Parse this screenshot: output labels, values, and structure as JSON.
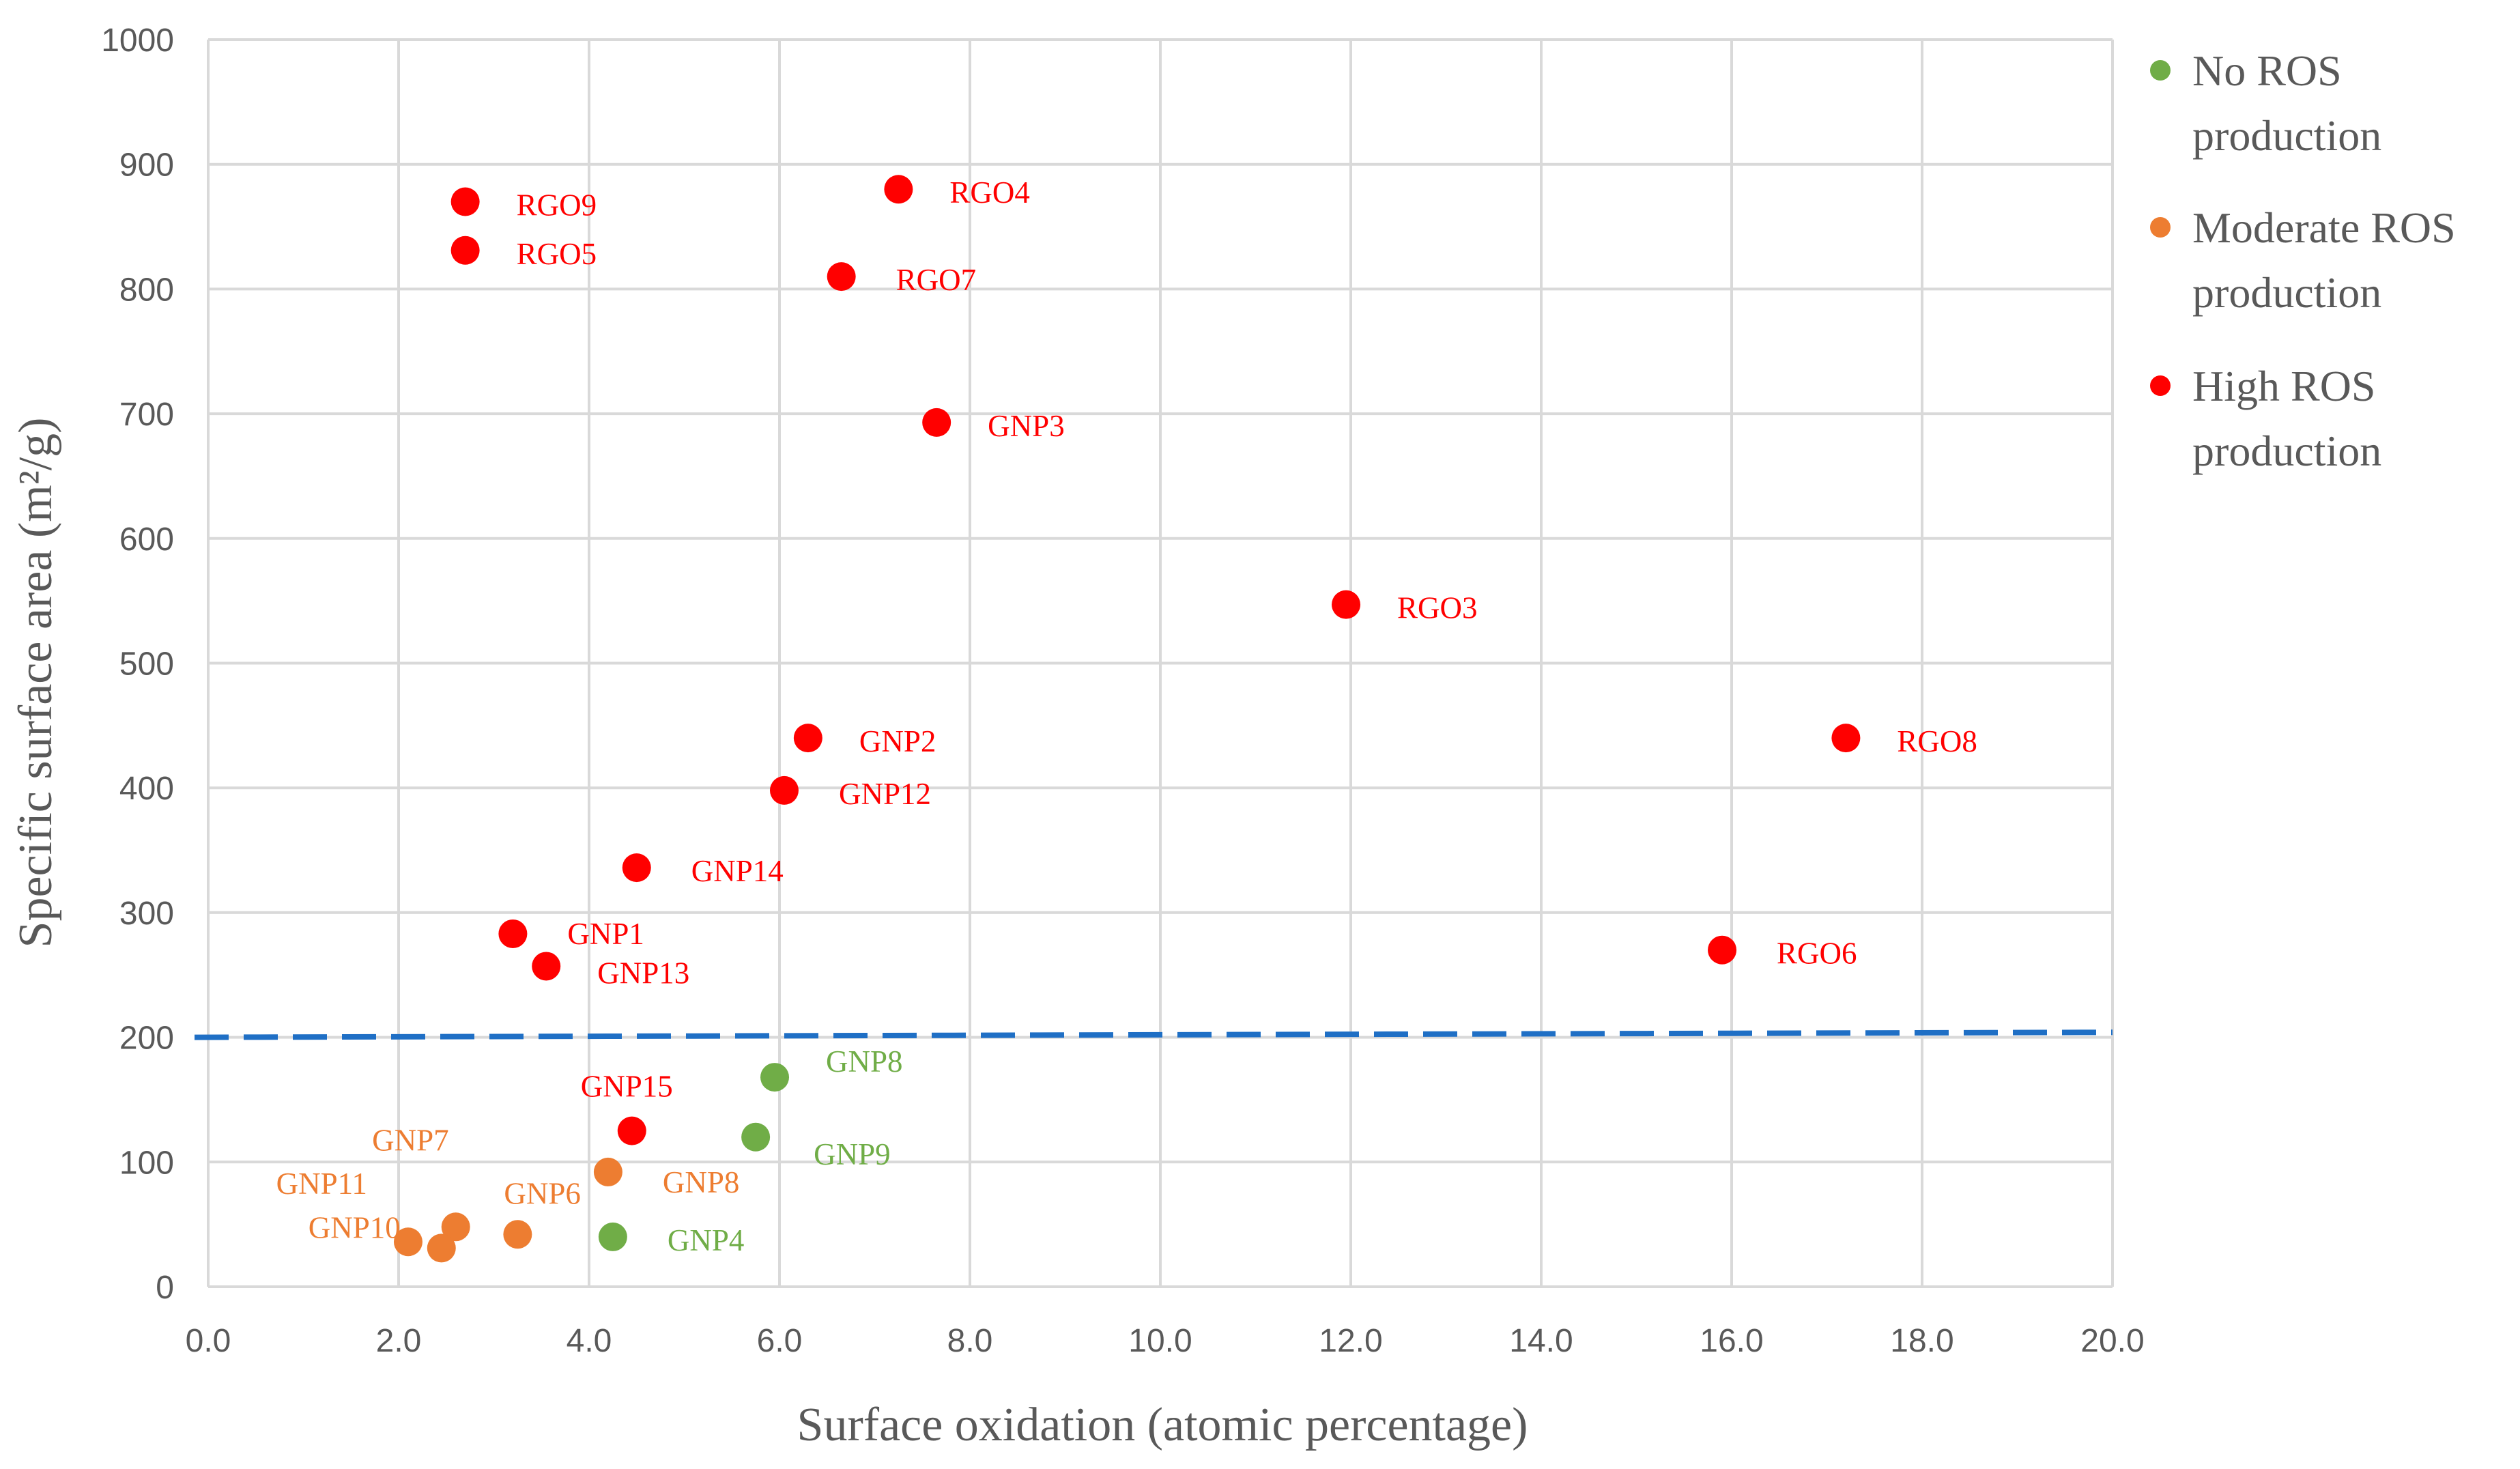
{
  "chart_data": {
    "type": "scatter",
    "title": "",
    "xlabel": "Surface oxidation (atomic percentage)",
    "ylabel": "Specific surface area (m²/g)",
    "xlim": [
      0,
      20
    ],
    "ylim": [
      0,
      1000
    ],
    "x_ticks": [
      "0.0",
      "2.0",
      "4.0",
      "6.0",
      "8.0",
      "10.0",
      "12.0",
      "14.0",
      "16.0",
      "18.0",
      "20.0"
    ],
    "y_ticks": [
      "0",
      "100",
      "200",
      "300",
      "400",
      "500",
      "600",
      "700",
      "800",
      "900",
      "1000"
    ],
    "grid": true,
    "legend_position": "right",
    "threshold_line": {
      "y_start": 200,
      "y_end": 204,
      "color": "#1f6fc5",
      "style": "dashed"
    },
    "series": [
      {
        "name": "No ROS production",
        "legend_lines": [
          "No ROS",
          "production"
        ],
        "color": "#70ad47",
        "points": [
          {
            "label": "GNP8",
            "x": 5.95,
            "y": 168
          },
          {
            "label": "GNP9",
            "x": 5.75,
            "y": 120
          },
          {
            "label": "GNP4",
            "x": 4.25,
            "y": 40
          }
        ]
      },
      {
        "name": "Moderate ROS production",
        "legend_lines": [
          "Moderate ROS",
          "production"
        ],
        "color": "#ed7d31",
        "points": [
          {
            "label": "GNP8",
            "x": 4.2,
            "y": 92
          },
          {
            "label": "GNP7",
            "x": 2.6,
            "y": 48
          },
          {
            "label": "GNP11",
            "x": 2.1,
            "y": 36
          },
          {
            "label": "GNP10",
            "x": 2.45,
            "y": 31
          },
          {
            "label": "GNP6",
            "x": 3.25,
            "y": 42
          }
        ]
      },
      {
        "name": "High ROS production",
        "legend_lines": [
          "High ROS",
          "production"
        ],
        "color": "#ff0000",
        "points": [
          {
            "label": "RGO9",
            "x": 2.7,
            "y": 870
          },
          {
            "label": "RGO5",
            "x": 2.7,
            "y": 831
          },
          {
            "label": "RGO4",
            "x": 7.25,
            "y": 880
          },
          {
            "label": "RGO7",
            "x": 6.65,
            "y": 810
          },
          {
            "label": "GNP3",
            "x": 7.65,
            "y": 693
          },
          {
            "label": "RGO3",
            "x": 11.95,
            "y": 547
          },
          {
            "label": "RGO8",
            "x": 17.2,
            "y": 440
          },
          {
            "label": "GNP2",
            "x": 6.3,
            "y": 440
          },
          {
            "label": "GNP12",
            "x": 6.05,
            "y": 398
          },
          {
            "label": "GNP14",
            "x": 4.5,
            "y": 336
          },
          {
            "label": "GNP1",
            "x": 3.2,
            "y": 283
          },
          {
            "label": "GNP13",
            "x": 3.55,
            "y": 257
          },
          {
            "label": "RGO6",
            "x": 15.9,
            "y": 270
          },
          {
            "label": "GNP15",
            "x": 4.45,
            "y": 125
          }
        ]
      }
    ]
  }
}
